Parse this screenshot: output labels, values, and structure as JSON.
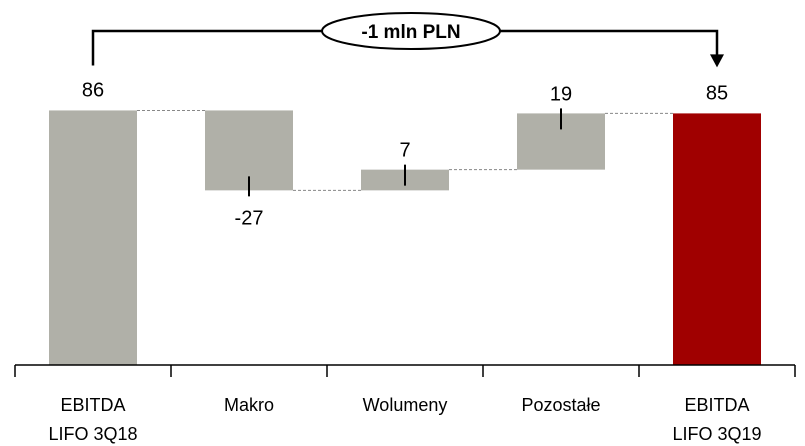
{
  "chart_data": {
    "type": "bar",
    "subtype": "waterfall",
    "title": "",
    "xlabel": "",
    "ylabel": "",
    "categories": [
      [
        "EBITDA",
        "LIFO 3Q18"
      ],
      [
        "Makro"
      ],
      [
        "Wolumeny"
      ],
      [
        "Pozostałe"
      ],
      [
        "EBITDA",
        "LIFO 3Q19"
      ]
    ],
    "values": [
      86,
      -27,
      7,
      19,
      85
    ],
    "bar_kinds": [
      "total",
      "delta",
      "delta",
      "delta",
      "total"
    ],
    "value_labels": [
      "86",
      "-27",
      "7",
      "19",
      "85"
    ],
    "colors": {
      "total_start": "#b0b0a8",
      "delta": "#b0b0a8",
      "total_end": "#a00000",
      "connector": "#888888"
    },
    "annotation": {
      "text": "-1 mln PLN"
    },
    "ylim": [
      0,
      100
    ],
    "grid": false,
    "legend": "none"
  }
}
